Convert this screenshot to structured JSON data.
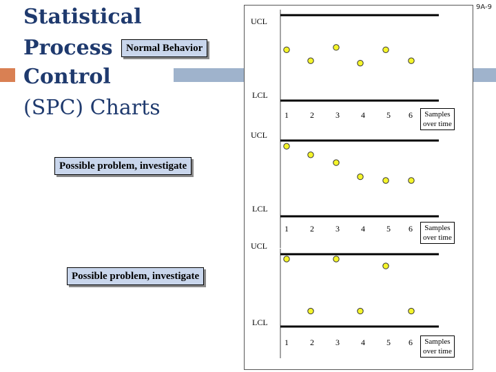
{
  "slide": {
    "number": "9A-9",
    "title_lines": [
      "Statistical",
      "Process",
      "Control",
      "(SPC) Charts"
    ]
  },
  "callouts": [
    "Normal Behavior",
    "Possible problem, investigate",
    "Possible problem, investigate"
  ],
  "charts": [
    {
      "ucl_label": "UCL",
      "lcl_label": "LCL",
      "x_ticks": [
        "1",
        "2",
        "3",
        "4",
        "5",
        "6"
      ],
      "samples_label": [
        "Samples",
        "over time"
      ],
      "points": [
        {
          "sample": 1,
          "level": 0.1
        },
        {
          "sample": 2,
          "level": 0.47
        },
        {
          "sample": 3,
          "level": 0.02
        },
        {
          "sample": 4,
          "level": 0.55
        },
        {
          "sample": 5,
          "level": 0.1
        },
        {
          "sample": 6,
          "level": 0.47
        }
      ]
    },
    {
      "ucl_label": "UCL",
      "lcl_label": "LCL",
      "x_ticks": [
        "1",
        "2",
        "3",
        "4",
        "5",
        "6"
      ],
      "samples_label": [
        "Samples",
        "over time"
      ],
      "points": [
        {
          "sample": 1,
          "level": 0.08
        },
        {
          "sample": 2,
          "level": 0.31
        },
        {
          "sample": 3,
          "level": 0.52
        },
        {
          "sample": 4,
          "level": 0.9
        },
        {
          "sample": 5,
          "level": 1.0
        },
        {
          "sample": 6,
          "level": 1.0
        }
      ]
    },
    {
      "ucl_label": "UCL",
      "lcl_label": "LCL",
      "x_ticks": [
        "1",
        "2",
        "3",
        "4",
        "5",
        "6"
      ],
      "samples_label": [
        "Samples",
        "over time"
      ],
      "points": [
        {
          "sample": 1,
          "level": 0.0
        },
        {
          "sample": 2,
          "level": 0.9
        },
        {
          "sample": 3,
          "level": 0.0
        },
        {
          "sample": 4,
          "level": 0.9
        },
        {
          "sample": 5,
          "level": 0.12
        },
        {
          "sample": 6,
          "level": 0.9
        }
      ]
    }
  ],
  "colors": {
    "title": "#1f3a6e",
    "point_fill": "#f5f52a",
    "callout_fill": "#c9d6ec"
  }
}
